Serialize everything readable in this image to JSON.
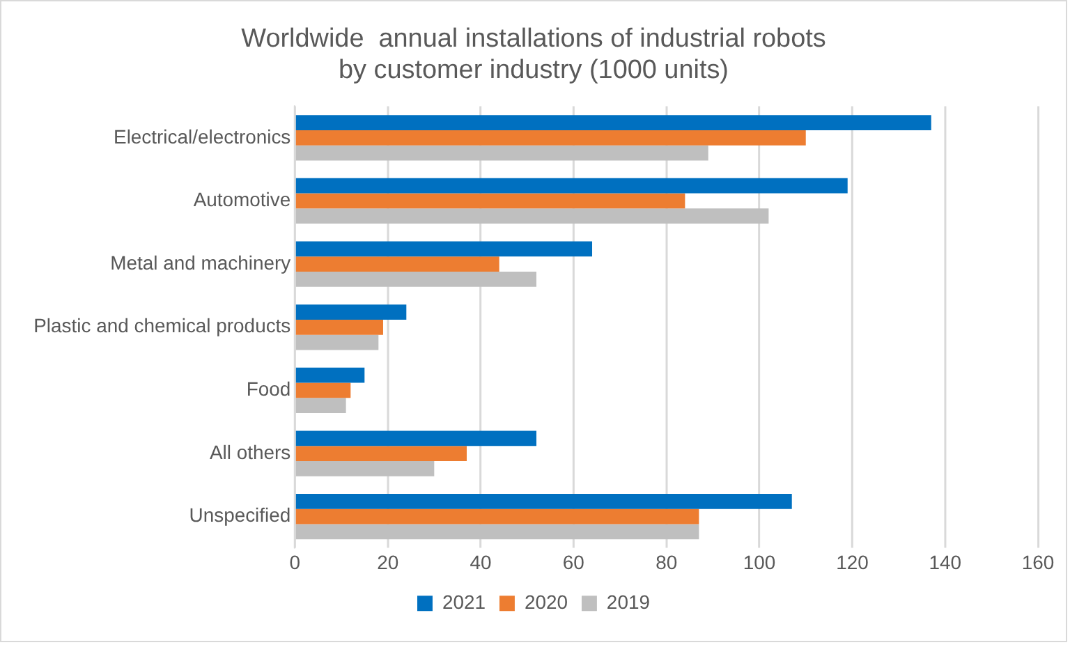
{
  "chart_data": {
    "type": "bar",
    "orientation": "horizontal",
    "title": "Worldwide  annual installations of industrial robots by customer industry (1000 units)",
    "categories": [
      "Electrical/electronics",
      "Automotive",
      "Metal and machinery",
      "Plastic and chemical products",
      "Food",
      "All others",
      "Unspecified"
    ],
    "series": [
      {
        "name": "2021",
        "color": "#0070c0",
        "values": [
          137,
          119,
          64,
          24,
          15,
          52,
          107
        ]
      },
      {
        "name": "2020",
        "color": "#ed7d31",
        "values": [
          110,
          84,
          44,
          19,
          12,
          37,
          87
        ]
      },
      {
        "name": "2019",
        "color": "#bfbfbf",
        "values": [
          89,
          102,
          52,
          18,
          11,
          30,
          87
        ]
      }
    ],
    "xlim": [
      0,
      160
    ],
    "xticks": [
      0,
      20,
      40,
      60,
      80,
      100,
      120,
      140,
      160
    ],
    "grid": "x",
    "legend": "bottom"
  }
}
